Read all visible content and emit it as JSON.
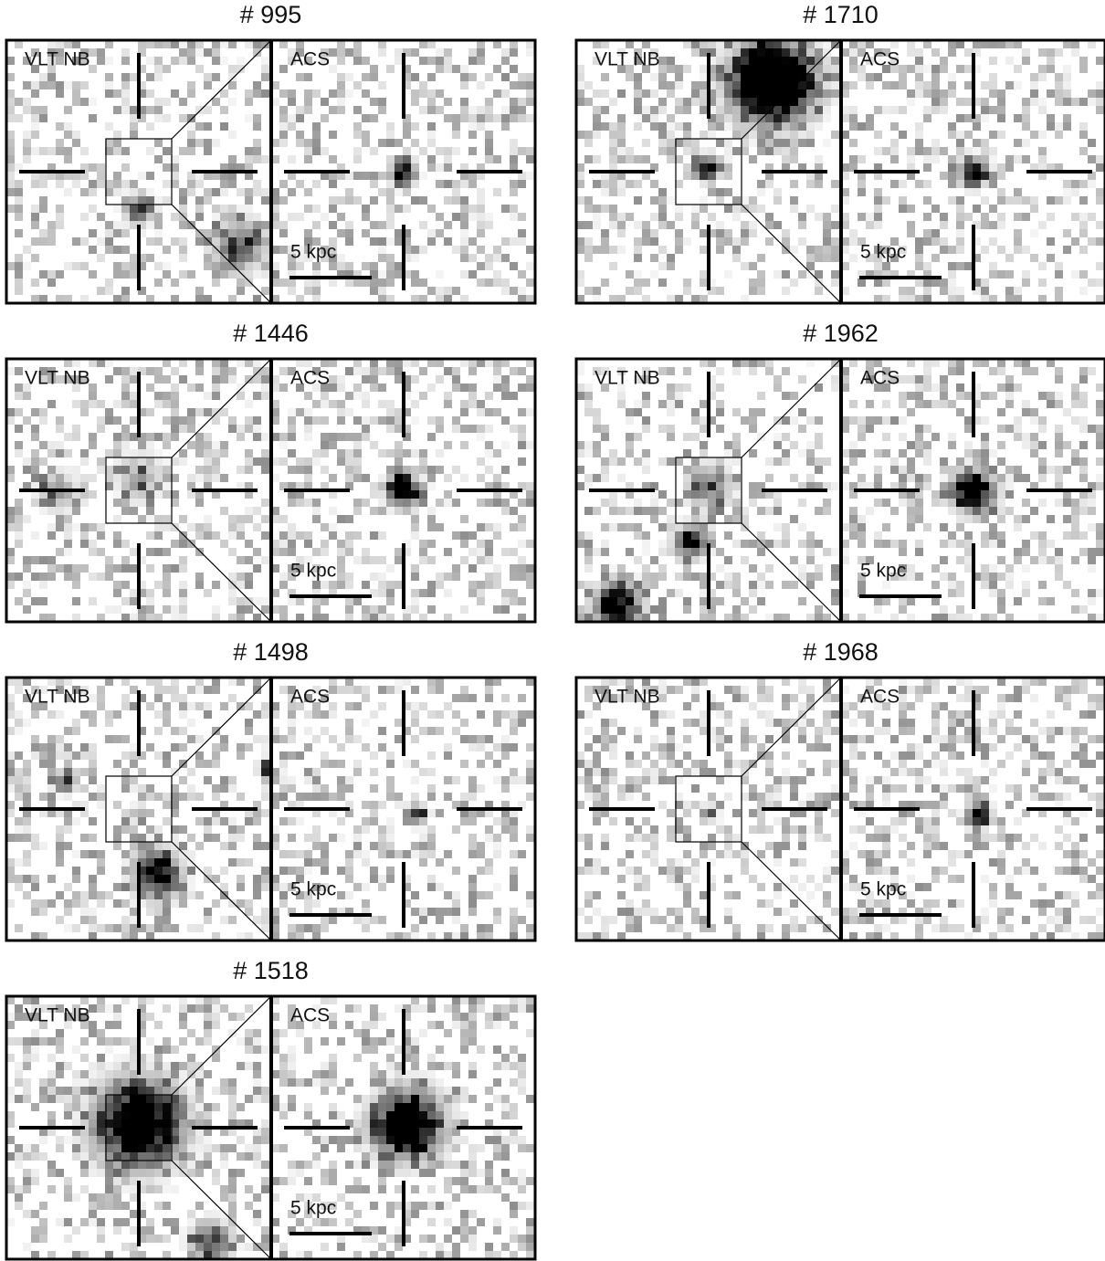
{
  "panels": [
    {
      "title": "# 995",
      "left_label": "VLT NB",
      "right_label": "ACS",
      "scale_label": "5 kpc"
    },
    {
      "title": "# 1710",
      "left_label": "VLT NB",
      "right_label": "ACS",
      "scale_label": "5 kpc"
    },
    {
      "title": "# 1446",
      "left_label": "VLT NB",
      "right_label": "ACS",
      "scale_label": "5 kpc"
    },
    {
      "title": "# 1962",
      "left_label": "VLT NB",
      "right_label": "ACS",
      "scale_label": "5 kpc"
    },
    {
      "title": "# 1498",
      "left_label": "VLT NB",
      "right_label": "ACS",
      "scale_label": "5 kpc"
    },
    {
      "title": "# 1968",
      "left_label": "VLT NB",
      "right_label": "ACS",
      "scale_label": "5 kpc"
    },
    {
      "title": "# 1518",
      "left_label": "VLT NB",
      "right_label": "ACS",
      "scale_label": "5 kpc"
    }
  ]
}
